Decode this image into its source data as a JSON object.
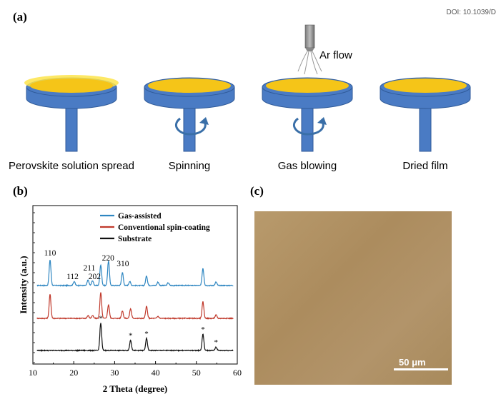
{
  "header": {
    "doi": "DOI: 10.1039/D"
  },
  "panels": {
    "a": "(a)",
    "b": "(b)",
    "c": "(c)"
  },
  "panel_a": {
    "gas_label": "Ar flow",
    "steps": [
      {
        "label": "Perovskite solution spread"
      },
      {
        "label": "Spinning"
      },
      {
        "label": "Gas blowing"
      },
      {
        "label": "Dried film"
      }
    ],
    "colors": {
      "dish": "#4a7bc4",
      "dish_edge": "#2f5a98",
      "film": "#f5c518",
      "film_light": "#fde44a",
      "arrow": "#3a6fa8"
    }
  },
  "panel_c": {
    "scale_label": "50 μm"
  },
  "chart_data": {
    "type": "line",
    "xlabel": "2 Theta (degree)",
    "ylabel": "Intensity (a.u.)",
    "xlim": [
      10,
      60
    ],
    "xticks": [
      10,
      20,
      30,
      40,
      50,
      60
    ],
    "legend_position": "top-center",
    "series": [
      {
        "name": "Gas-assisted",
        "color": "#2e86c1",
        "offset": 2.0,
        "peaks": [
          [
            14.2,
            0.75
          ],
          [
            20.1,
            0.12
          ],
          [
            23.5,
            0.16
          ],
          [
            24.6,
            0.14
          ],
          [
            26.6,
            0.6
          ],
          [
            28.5,
            0.72
          ],
          [
            31.9,
            0.38
          ],
          [
            33.7,
            0.12
          ],
          [
            37.8,
            0.28
          ],
          [
            40.6,
            0.1
          ],
          [
            43.1,
            0.08
          ],
          [
            51.6,
            0.5
          ],
          [
            54.8,
            0.1
          ]
        ]
      },
      {
        "name": "Conventional spin-coating",
        "color": "#c0392b",
        "offset": 1.0,
        "peaks": [
          [
            14.2,
            0.7
          ],
          [
            23.5,
            0.08
          ],
          [
            24.6,
            0.08
          ],
          [
            26.6,
            0.75
          ],
          [
            28.5,
            0.4
          ],
          [
            31.9,
            0.22
          ],
          [
            33.9,
            0.28
          ],
          [
            37.8,
            0.35
          ],
          [
            40.6,
            0.06
          ],
          [
            51.6,
            0.48
          ],
          [
            54.8,
            0.1
          ]
        ]
      },
      {
        "name": "Substrate",
        "color": "#111111",
        "offset": 0.0,
        "peaks": [
          [
            26.6,
            0.8
          ],
          [
            33.9,
            0.3
          ],
          [
            37.8,
            0.35
          ],
          [
            51.6,
            0.48
          ],
          [
            54.8,
            0.1
          ]
        ]
      }
    ],
    "annotations": [
      {
        "text": "110",
        "x": 14.2
      },
      {
        "text": "112",
        "x": 19.7
      },
      {
        "text": "211",
        "x": 23.8
      },
      {
        "text": "202",
        "x": 25.1
      },
      {
        "text": "220",
        "x": 28.4
      },
      {
        "text": "310",
        "x": 32.0
      }
    ],
    "stars": [
      26.6,
      33.9,
      37.8,
      51.6,
      54.8
    ]
  }
}
